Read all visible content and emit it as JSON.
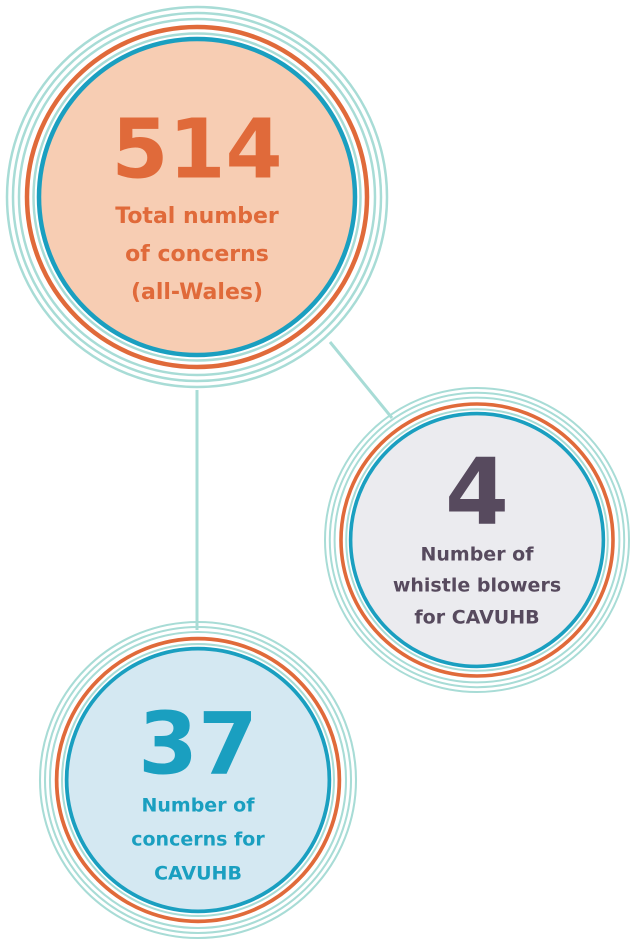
{
  "nodes": [
    {
      "value": 514,
      "label_lines": [
        "Total number",
        "of concerns",
        "(all-Wales)"
      ]
    },
    {
      "value": 4,
      "label_lines": [
        "Number of",
        "whistle blowers",
        "for CAVUHB"
      ]
    },
    {
      "value": 37,
      "label_lines": [
        "Number of",
        "concerns for",
        "CAVUHB"
      ]
    }
  ]
}
